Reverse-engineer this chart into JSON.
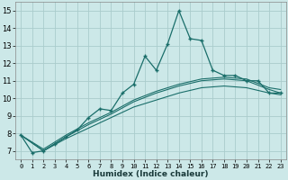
{
  "xlabel": "Humidex (Indice chaleur)",
  "bg_color": "#cce8e8",
  "grid_color": "#aacccc",
  "line_color": "#1a6e6a",
  "xlim": [
    -0.5,
    23.5
  ],
  "ylim": [
    6.5,
    15.5
  ],
  "xtick_labels": [
    "0",
    "1",
    "2",
    "3",
    "4",
    "5",
    "6",
    "7",
    "8",
    "9",
    "10",
    "11",
    "12",
    "13",
    "14",
    "15",
    "16",
    "17",
    "18",
    "19",
    "20",
    "21",
    "22",
    "23"
  ],
  "yticks": [
    7,
    8,
    9,
    10,
    11,
    12,
    13,
    14,
    15
  ],
  "main_x": [
    0,
    1,
    2,
    3,
    4,
    5,
    6,
    7,
    8,
    9,
    10,
    11,
    12,
    13,
    14,
    15,
    16,
    17,
    18,
    19,
    20,
    21,
    22,
    23
  ],
  "main_y": [
    7.9,
    6.9,
    7.0,
    7.4,
    7.8,
    8.2,
    8.9,
    9.4,
    9.3,
    10.3,
    10.8,
    12.4,
    11.6,
    13.1,
    15.0,
    13.4,
    13.3,
    11.6,
    11.3,
    11.3,
    11.0,
    11.0,
    10.3,
    10.3
  ],
  "curve1_x": [
    0,
    2,
    4,
    6,
    8,
    10,
    12,
    14,
    16,
    18,
    20,
    22,
    23
  ],
  "curve1_y": [
    7.9,
    7.0,
    7.8,
    8.5,
    9.1,
    9.8,
    10.3,
    10.7,
    11.0,
    11.1,
    11.0,
    10.5,
    10.3
  ],
  "curve2_x": [
    0,
    2,
    4,
    6,
    8,
    10,
    12,
    14,
    16,
    18,
    20,
    22,
    23
  ],
  "curve2_y": [
    7.9,
    7.0,
    7.7,
    8.3,
    8.9,
    9.5,
    9.9,
    10.3,
    10.6,
    10.7,
    10.6,
    10.3,
    10.2
  ],
  "curve3_x": [
    0,
    2,
    4,
    6,
    8,
    10,
    12,
    14,
    16,
    18,
    20,
    22,
    23
  ],
  "curve3_y": [
    7.9,
    7.1,
    7.9,
    8.6,
    9.2,
    9.9,
    10.4,
    10.8,
    11.1,
    11.2,
    11.1,
    10.6,
    10.5
  ]
}
